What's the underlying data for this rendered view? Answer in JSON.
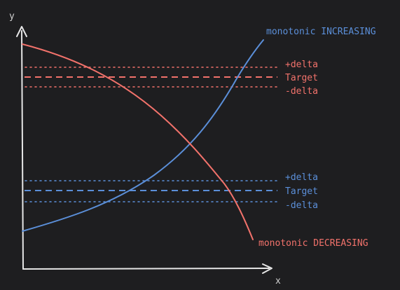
{
  "axes": {
    "x_label": "x",
    "y_label": "y"
  },
  "colors": {
    "background": "#1e1e20",
    "axis": "#e6e6e6",
    "increasing": "#5b8fd9",
    "decreasing": "#f2726b"
  },
  "curves": {
    "increasing_label": "monotonic INCREASING",
    "decreasing_label": "monotonic DECREASING"
  },
  "bands": {
    "upper": {
      "plus_delta": "+delta",
      "target": "Target",
      "minus_delta": "-delta"
    },
    "lower": {
      "plus_delta": "+delta",
      "target": "Target",
      "minus_delta": "-delta"
    }
  }
}
